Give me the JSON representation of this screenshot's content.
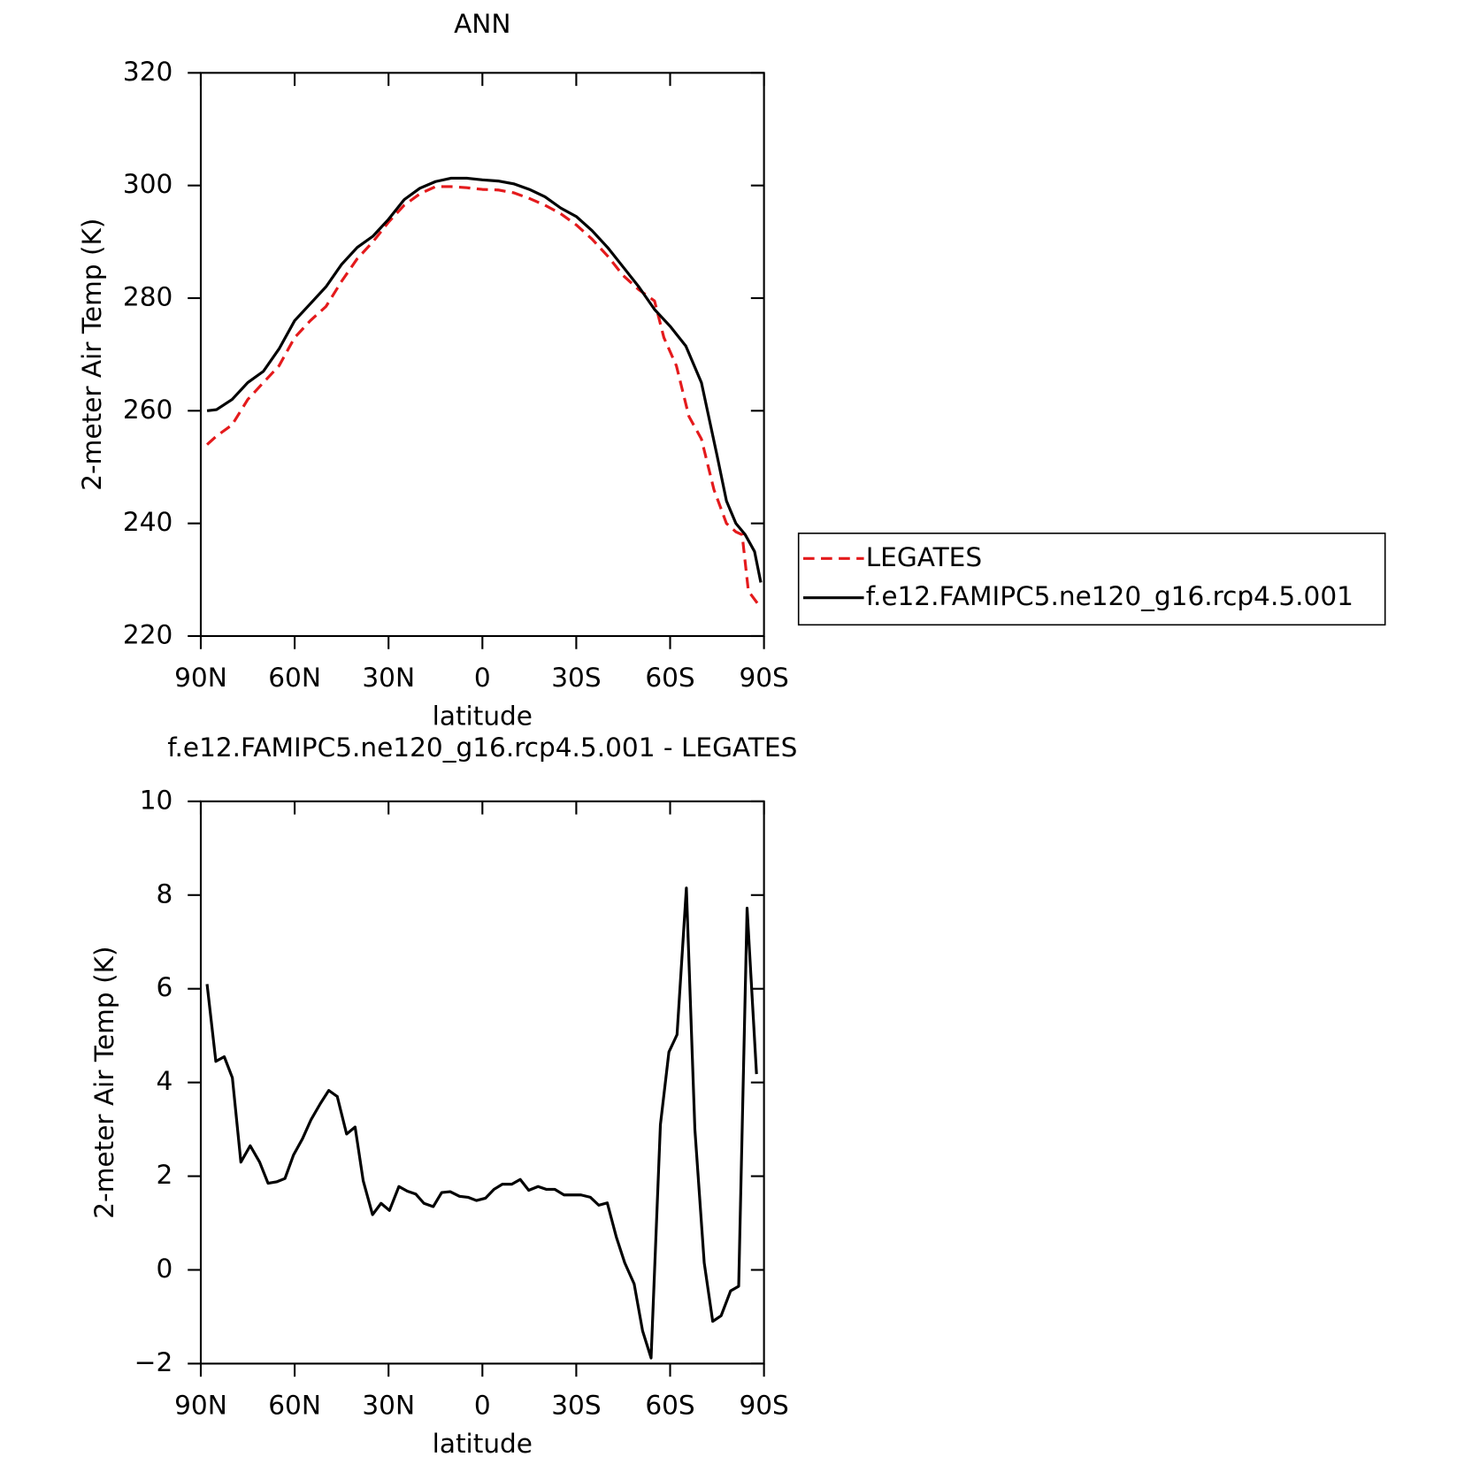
{
  "chart_data": [
    {
      "type": "line",
      "title": "ANN",
      "xlabel": "latitude",
      "ylabel": "2-meter Air Temp (K)",
      "xlim": [
        90,
        -90
      ],
      "xticks": [
        {
          "value": 90,
          "label": "90N"
        },
        {
          "value": 60,
          "label": "60N"
        },
        {
          "value": 30,
          "label": "30N"
        },
        0,
        {
          "value": -30,
          "label": "30S"
        },
        {
          "value": -60,
          "label": "60S"
        },
        {
          "value": -90,
          "label": "90S"
        }
      ],
      "ylim": [
        220,
        320
      ],
      "yticks": [
        220,
        240,
        260,
        280,
        300,
        320
      ],
      "legend": "outside right",
      "series": [
        {
          "name": "LEGATES",
          "color": "#e41a1c",
          "dash": true,
          "x": [
            88,
            85,
            80,
            75,
            70,
            65,
            60,
            55,
            50,
            45,
            40,
            35,
            30,
            25,
            20,
            15,
            10,
            5,
            0,
            -5,
            -10,
            -15,
            -20,
            -25,
            -30,
            -35,
            -40,
            -45,
            -50,
            -55,
            -58,
            -62,
            -66,
            -70,
            -74,
            -78,
            -81,
            -83,
            -85,
            -89
          ],
          "values": [
            254,
            255.5,
            257.5,
            262,
            265,
            268,
            273,
            276,
            278.5,
            283,
            287,
            290,
            293.5,
            296.5,
            298.5,
            299.8,
            299.8,
            299.6,
            299.3,
            299.2,
            298.7,
            297.7,
            296.5,
            295,
            293,
            290.5,
            287.5,
            284,
            281.5,
            279.5,
            273,
            268,
            259,
            255,
            246,
            240,
            238.5,
            238,
            228,
            225
          ]
        },
        {
          "name": "f.e12.FAMIPC5.ne120_g16.rcp4.5.001",
          "color": "#000000",
          "dash": false,
          "x": [
            88,
            85,
            80,
            75,
            70,
            65,
            60,
            55,
            50,
            45,
            40,
            35,
            30,
            25,
            20,
            15,
            10,
            5,
            0,
            -5,
            -10,
            -15,
            -20,
            -25,
            -30,
            -35,
            -40,
            -45,
            -50,
            -55,
            -60,
            -65,
            -70,
            -75,
            -78,
            -81,
            -84,
            -87,
            -89
          ],
          "values": [
            260,
            260.2,
            262,
            265,
            267,
            271,
            276,
            279,
            282,
            286,
            289,
            291,
            294,
            297.5,
            299.5,
            300.7,
            301.3,
            301.3,
            301,
            300.8,
            300.3,
            299.3,
            298,
            296,
            294.5,
            292,
            289,
            285.5,
            282,
            278,
            275,
            271.5,
            265,
            252,
            244,
            240,
            238,
            235,
            229.5
          ]
        }
      ]
    },
    {
      "type": "line",
      "title": "f.e12.FAMIPC5.ne120_g16.rcp4.5.001 - LEGATES",
      "xlabel": "latitude",
      "ylabel": "2-meter Air Temp (K)",
      "xlim": [
        90,
        -90
      ],
      "xticks": [
        {
          "value": 90,
          "label": "90N"
        },
        {
          "value": 60,
          "label": "60N"
        },
        {
          "value": 30,
          "label": "30N"
        },
        0,
        {
          "value": -30,
          "label": "30S"
        },
        {
          "value": -60,
          "label": "60S"
        },
        {
          "value": -90,
          "label": "90S"
        }
      ],
      "ylim": [
        -2,
        10
      ],
      "yticks": [
        {
          "value": -2,
          "label": "−2"
        },
        0,
        2,
        4,
        6,
        8,
        10
      ],
      "series": [
        {
          "color": "#000000",
          "dash": false,
          "x": [
            88,
            85.2,
            82.5,
            79.9,
            77.2,
            74.2,
            71.2,
            68.5,
            65.8,
            63.1,
            60.4,
            57.5,
            54.8,
            51.8,
            49.1,
            46.4,
            43.4,
            40.7,
            38.1,
            35.1,
            32.4,
            29.7,
            26.7,
            24,
            21.3,
            18.7,
            15.7,
            13,
            10.3,
            7.3,
            4.6,
            1.9,
            -1,
            -3.7,
            -6.4,
            -9.4,
            -12.1,
            -14.8,
            -17.8,
            -20.4,
            -23.1,
            -26.1,
            -28.8,
            -31.5,
            -34.5,
            -37.2,
            -39.9,
            -42.8,
            -45.5,
            -48.5,
            -51.2,
            -53.9,
            -56.9,
            -59.6,
            -62.2,
            -65.2,
            -67.9,
            -70.9,
            -73.6,
            -76.3,
            -79.3,
            -81.9,
            -84.6,
            -87.6
          ],
          "values": [
            6.1,
            4.45,
            4.55,
            4.1,
            2.3,
            2.65,
            2.3,
            1.85,
            1.88,
            1.95,
            2.45,
            2.8,
            3.2,
            3.55,
            3.83,
            3.7,
            2.9,
            3.05,
            1.9,
            1.18,
            1.42,
            1.27,
            1.78,
            1.68,
            1.62,
            1.42,
            1.35,
            1.65,
            1.67,
            1.57,
            1.55,
            1.48,
            1.53,
            1.72,
            1.83,
            1.83,
            1.93,
            1.7,
            1.78,
            1.72,
            1.72,
            1.6,
            1.6,
            1.6,
            1.55,
            1.38,
            1.43,
            0.7,
            0.15,
            -0.3,
            -1.3,
            -1.88,
            3.1,
            4.65,
            5.02,
            8.15,
            3,
            0.15,
            -1.1,
            -0.98,
            -0.45,
            -0.35,
            7.72,
            4.18
          ]
        }
      ]
    }
  ]
}
